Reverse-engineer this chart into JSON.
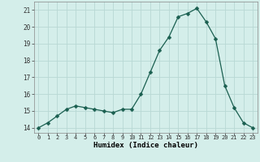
{
  "x": [
    0,
    1,
    2,
    3,
    4,
    5,
    6,
    7,
    8,
    9,
    10,
    11,
    12,
    13,
    14,
    15,
    16,
    17,
    18,
    19,
    20,
    21,
    22,
    23
  ],
  "y": [
    14.0,
    14.3,
    14.7,
    15.1,
    15.3,
    15.2,
    15.1,
    15.0,
    14.9,
    15.1,
    15.1,
    16.0,
    17.3,
    18.6,
    19.4,
    20.6,
    20.8,
    21.1,
    20.3,
    19.3,
    16.5,
    15.2,
    14.3,
    14.0
  ],
  "line_color": "#1a5f50",
  "marker_color": "#1a5f50",
  "bg_color": "#d4eeea",
  "grid_color": "#b8d8d4",
  "xlabel": "Humidex (Indice chaleur)",
  "ylim": [
    13.7,
    21.5
  ],
  "xlim": [
    -0.5,
    23.5
  ],
  "yticks": [
    14,
    15,
    16,
    17,
    18,
    19,
    20,
    21
  ],
  "xticks": [
    0,
    1,
    2,
    3,
    4,
    5,
    6,
    7,
    8,
    9,
    10,
    11,
    12,
    13,
    14,
    15,
    16,
    17,
    18,
    19,
    20,
    21,
    22,
    23
  ]
}
